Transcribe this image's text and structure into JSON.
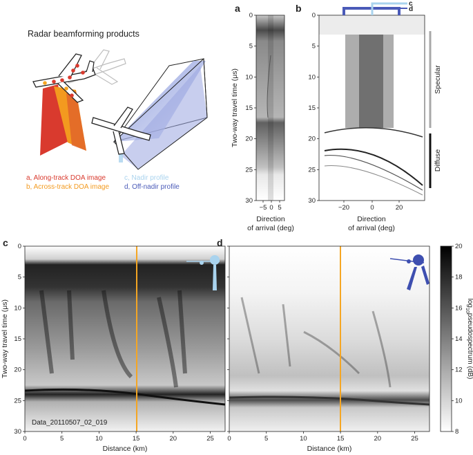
{
  "figure": {
    "schematic": {
      "title": "Radar beamforming products",
      "legend": [
        {
          "text": "a,  Along-track DOA image",
          "color": "#d93a2e"
        },
        {
          "text": "b, Across-track DOA image",
          "color": "#f39a1f"
        },
        {
          "text": "c, Nadir profile",
          "color": "#a9d3ee"
        },
        {
          "text": "d, Off-nadir profile",
          "color": "#4a5ab8"
        }
      ]
    },
    "panel_a": {
      "letter": "a",
      "ylabel": "Two-way travel time (μs)",
      "xlabel_line1": "Direction",
      "xlabel_line2": "of arrival (deg)",
      "xticks": [
        "−5",
        "0",
        "5"
      ],
      "yticks": [
        "0",
        "5",
        "10",
        "15",
        "20",
        "25",
        "30"
      ]
    },
    "panel_b": {
      "letter": "b",
      "xlabel_line1": "Direction",
      "xlabel_line2": "of arrival (deg)",
      "xticks": [
        "−20",
        "0",
        "20"
      ],
      "yticks": [
        "0",
        "5",
        "10",
        "15",
        "20",
        "25",
        "30"
      ],
      "marker_c": "c",
      "marker_d": "d",
      "specular_label": "Specular",
      "diffuse_label": "Diffuse"
    },
    "panel_c": {
      "letter": "c",
      "ylabel": "Two-way travel time (μs)",
      "xlabel": "Distance (km)",
      "xticks": [
        "0",
        "5",
        "10",
        "15",
        "20",
        "25"
      ],
      "yticks": [
        "0",
        "5",
        "10",
        "15",
        "20",
        "25",
        "30"
      ],
      "dataset_label": "Data_20110507_02_019"
    },
    "panel_d": {
      "letter": "d",
      "xlabel": "Distance (km)",
      "xticks": [
        "0",
        "5",
        "10",
        "15",
        "20",
        "25"
      ]
    },
    "colorbar": {
      "label_main": "log",
      "label_sub": "10",
      "label_rest": "pseudospectrum (dB)",
      "ticks": [
        "20",
        "18",
        "16",
        "14",
        "12",
        "10",
        "8"
      ]
    },
    "colors": {
      "orange_line": "#f5a623",
      "nadir": "#a9d3ee",
      "offnadir": "#4a5ab8",
      "red": "#d93a2e",
      "orange": "#f39a1f"
    }
  }
}
